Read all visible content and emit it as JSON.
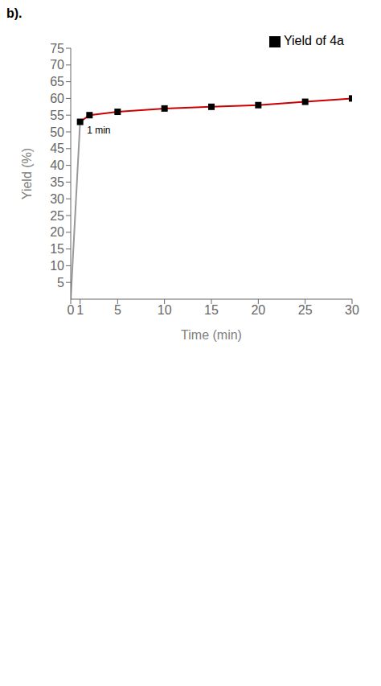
{
  "chart_data": {
    "type": "line",
    "title": "b).",
    "x_label": "Time (min)",
    "y_label": "Yield (%)",
    "xlim": [
      0,
      30
    ],
    "ylim": [
      0,
      75
    ],
    "xticks": [
      0,
      1,
      5,
      10,
      15,
      20,
      25,
      30
    ],
    "yticks": [
      5,
      10,
      15,
      20,
      25,
      30,
      35,
      40,
      45,
      50,
      55,
      60,
      65,
      70,
      75
    ],
    "grid": false,
    "legend": "upper right",
    "annotations": [
      {
        "text": "1 min",
        "x": 1.3,
        "y": 50.5
      }
    ],
    "series": [
      {
        "type": "line",
        "color": "#999999",
        "x": [
          0,
          1
        ],
        "values": [
          0,
          53
        ]
      },
      {
        "type": "line",
        "color": "#cc0000",
        "x": [
          1,
          2,
          5,
          10,
          15,
          20,
          25,
          30
        ],
        "values": [
          53,
          55,
          56,
          57,
          57.5,
          58,
          59,
          60
        ]
      },
      {
        "type": "scatter",
        "name": "Yield of 4a",
        "color": "#000000",
        "marker": "square",
        "x": [
          1,
          2,
          5,
          10,
          15,
          20,
          25,
          30
        ],
        "values": [
          53,
          55,
          56,
          57,
          57.5,
          58,
          59,
          60
        ]
      }
    ]
  }
}
